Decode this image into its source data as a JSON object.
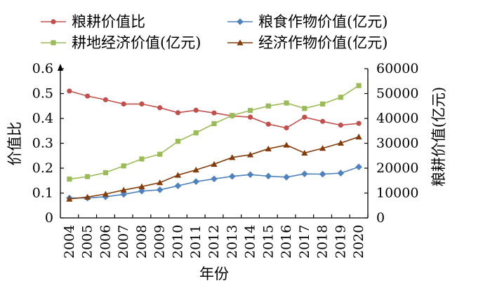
{
  "chart_data": {
    "type": "line",
    "xlabel": "年份",
    "ylabel_left": "价值比",
    "ylabel_right": "粮耕价值(亿元)",
    "ylim_left": [
      0,
      0.6
    ],
    "ylim_right": [
      0,
      60000
    ],
    "yticks_left": [
      "0",
      "0.1",
      "0.2",
      "0.3",
      "0.4",
      "0.5",
      "0.6"
    ],
    "yticks_right": [
      "0",
      "10000",
      "20000",
      "30000",
      "40000",
      "50000",
      "60000"
    ],
    "categories": [
      "2004",
      "2005",
      "2006",
      "2007",
      "2008",
      "2009",
      "2010",
      "2011",
      "2012",
      "2013",
      "2014",
      "2015",
      "2016",
      "2017",
      "2018",
      "2019",
      "2020"
    ],
    "legend_position": "top",
    "series": [
      {
        "name": "粮耕价值比",
        "axis": "left",
        "color": "#c0504d",
        "marker": "circle",
        "values": [
          0.51,
          0.49,
          0.475,
          0.458,
          0.458,
          0.443,
          0.423,
          0.433,
          0.422,
          0.41,
          0.405,
          0.377,
          0.362,
          0.405,
          0.388,
          0.373,
          0.38
        ]
      },
      {
        "name": "粮食作物价值(亿元)",
        "axis": "right",
        "color": "#4f81bd",
        "marker": "diamond",
        "values": [
          8000,
          8000,
          8500,
          9500,
          10800,
          11300,
          12900,
          14600,
          15700,
          16700,
          17400,
          16800,
          16400,
          17700,
          17600,
          18000,
          20500
        ]
      },
      {
        "name": "耕地经济价值(亿元)",
        "axis": "right",
        "color": "#9bbb59",
        "marker": "square",
        "values": [
          15600,
          16600,
          18200,
          20900,
          23700,
          25600,
          30800,
          34200,
          37900,
          41200,
          43200,
          45000,
          46200,
          44000,
          45800,
          48500,
          53200
        ]
      },
      {
        "name": "经济作物价值(亿元)",
        "axis": "right",
        "color": "#843c0c",
        "marker": "triangle",
        "values": [
          7600,
          8400,
          9600,
          11200,
          12600,
          14200,
          17200,
          19300,
          21600,
          24300,
          25400,
          27800,
          29300,
          26100,
          28000,
          30100,
          32600
        ]
      }
    ]
  }
}
